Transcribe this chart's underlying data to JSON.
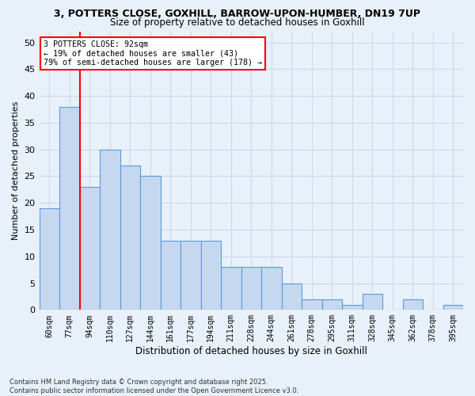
{
  "title1": "3, POTTERS CLOSE, GOXHILL, BARROW-UPON-HUMBER, DN19 7UP",
  "title2": "Size of property relative to detached houses in Goxhill",
  "xlabel": "Distribution of detached houses by size in Goxhill",
  "ylabel": "Number of detached properties",
  "categories": [
    "60sqm",
    "77sqm",
    "94sqm",
    "110sqm",
    "127sqm",
    "144sqm",
    "161sqm",
    "177sqm",
    "194sqm",
    "211sqm",
    "228sqm",
    "244sqm",
    "261sqm",
    "278sqm",
    "295sqm",
    "311sqm",
    "328sqm",
    "345sqm",
    "362sqm",
    "378sqm",
    "395sqm"
  ],
  "values": [
    19,
    38,
    23,
    30,
    27,
    25,
    13,
    13,
    13,
    8,
    8,
    8,
    5,
    2,
    2,
    1,
    3,
    0,
    2,
    0,
    1
  ],
  "bar_color": "#c5d8f0",
  "bar_edge_color": "#5b9bd5",
  "grid_color": "#d0d8e8",
  "bg_color": "#e8f0fa",
  "annotation_line1": "3 POTTERS CLOSE: 92sqm",
  "annotation_line2": "← 19% of detached houses are smaller (43)",
  "annotation_line3": "79% of semi-detached houses are larger (178) →",
  "annotation_box_color": "white",
  "annotation_box_edge": "red",
  "footer": "Contains HM Land Registry data © Crown copyright and database right 2025.\nContains public sector information licensed under the Open Government Licence v3.0.",
  "ylim": [
    0,
    52
  ],
  "yticks": [
    0,
    5,
    10,
    15,
    20,
    25,
    30,
    35,
    40,
    45,
    50
  ]
}
